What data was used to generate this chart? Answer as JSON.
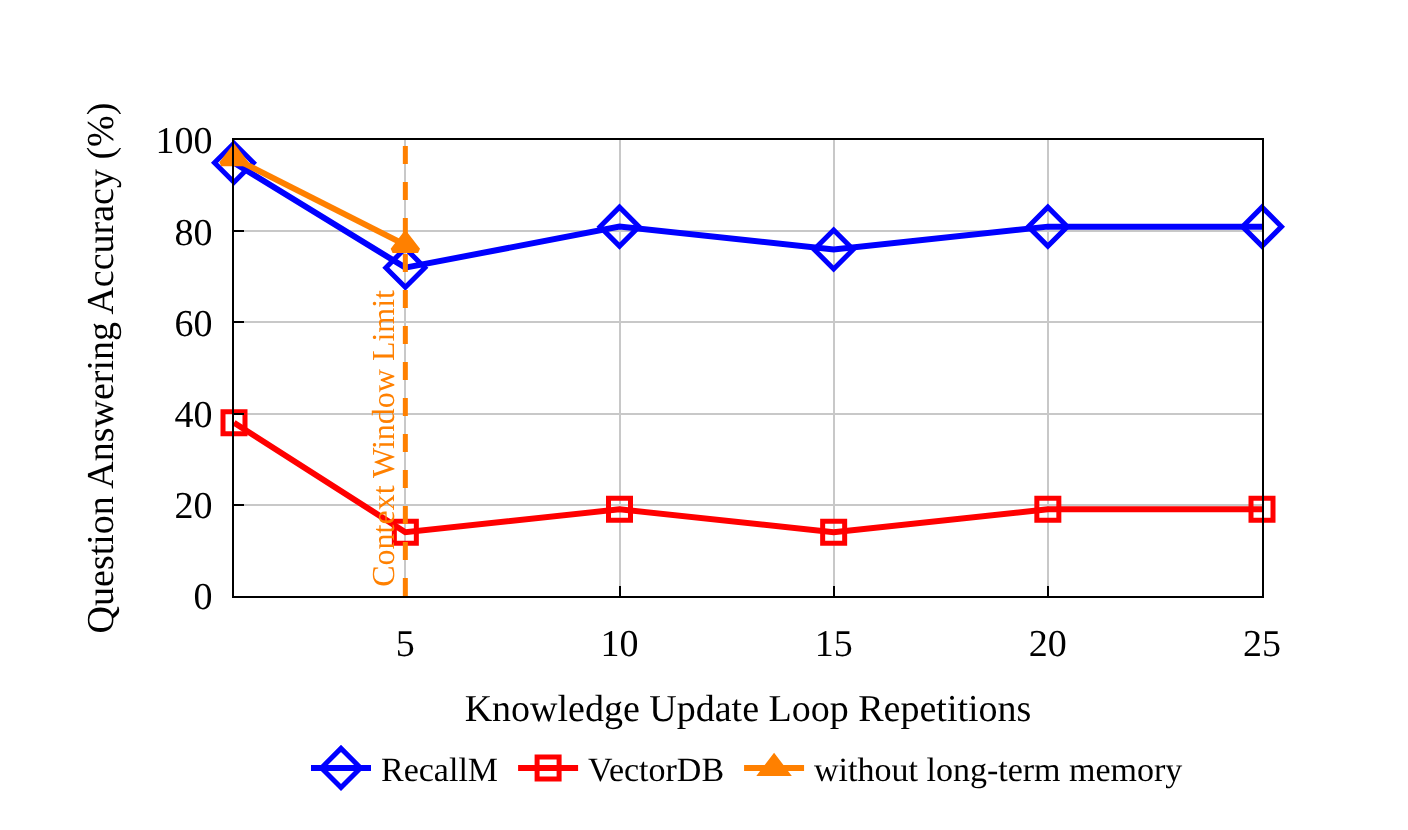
{
  "chart_data": {
    "type": "line",
    "xlabel": "Knowledge Update Loop Repetitions",
    "ylabel": "Question Answering Accuracy (%)",
    "x": [
      1,
      5,
      10,
      15,
      20,
      25
    ],
    "series": [
      {
        "name": "RecallM",
        "color": "#0000ff",
        "marker": "diamond",
        "values": [
          95,
          72,
          81,
          76,
          81,
          81
        ]
      },
      {
        "name": "VectorDB",
        "color": "#ff0000",
        "marker": "square",
        "values": [
          38,
          14,
          19,
          14,
          19,
          19
        ]
      },
      {
        "name": "without long-term memory",
        "color": "#ff8000",
        "marker": "triangle",
        "x": [
          1,
          5
        ],
        "values": [
          96,
          77
        ]
      }
    ],
    "xlim": [
      1,
      25
    ],
    "xticks": [
      5,
      10,
      15,
      20,
      25
    ],
    "ylim": [
      0,
      100
    ],
    "yticks": [
      0,
      20,
      40,
      60,
      80,
      100
    ],
    "grid": true,
    "legend": "bottom",
    "ref_lines": [
      {
        "axis": "x",
        "value": 5,
        "label": "Context Window Limit",
        "color": "#ff8000",
        "line_style": "dashed"
      }
    ]
  }
}
